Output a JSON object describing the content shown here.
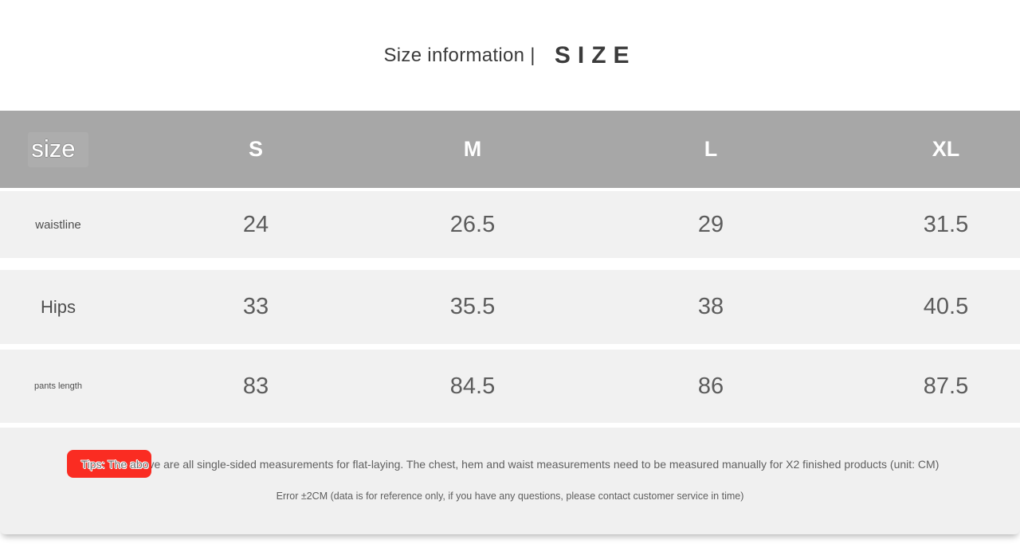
{
  "title": {
    "main": "Size information |",
    "accent": "SIZE"
  },
  "colors": {
    "header_bg": "#a7a7a7",
    "row_bg": "#f1f1f1",
    "badge_red": "#fa2c22",
    "header_text": "#ffffff",
    "value_text": "#5c5c5c",
    "title_text": "#3b3b3b"
  },
  "size_table": {
    "corner_label": "size",
    "columns": [
      "S",
      "M",
      "L",
      "XL"
    ],
    "rows": [
      {
        "label": "waistline",
        "values": [
          "24",
          "26.5",
          "29",
          "31.5"
        ]
      },
      {
        "label": "Hips",
        "values": [
          "33",
          "35.5",
          "38",
          "40.5"
        ]
      },
      {
        "label": "pants length",
        "values": [
          "83",
          "84.5",
          "86",
          "87.5"
        ]
      }
    ]
  },
  "tips": {
    "badge_overlap_text": "Tips: The abo",
    "text_rest": "ve are all single-sided measurements for flat-laying. The chest, hem and waist measurements need to be measured manually for X2 finished products (unit: CM)",
    "note": "Error ±2CM (data is for reference only, if you have any questions, please contact customer service in time)"
  }
}
